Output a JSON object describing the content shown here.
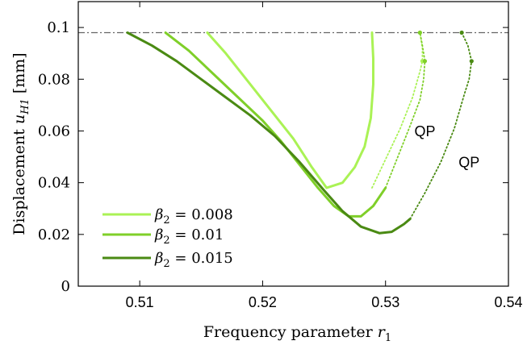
{
  "chart_data": {
    "type": "line",
    "xlabel": "Frequency parameter r",
    "xlabel_sub": "1",
    "ylabel": "Displacement u",
    "ylabel_sub": "H1",
    "ylabel_unit": "[mm]",
    "xlim": [
      0.505,
      0.54
    ],
    "ylim": [
      0,
      0.11
    ],
    "x_ticks": [
      0.51,
      0.52,
      0.53,
      0.54
    ],
    "x_tick_labels": [
      "0.51",
      "0.52",
      "0.53",
      "0.54"
    ],
    "y_ticks": [
      0,
      0.02,
      0.04,
      0.06,
      0.08,
      0.1
    ],
    "y_tick_labels": [
      "0",
      "0.02",
      "0.04",
      "0.06",
      "0.08",
      "0.1"
    ],
    "grid": false,
    "legend_placement": "bottom-left",
    "reference_line": {
      "y": 0.098,
      "style": "dash-dot",
      "color": "#666666"
    },
    "annotations": [
      {
        "text": "QP",
        "x": 0.5332,
        "y": 0.058
      },
      {
        "text": "QP",
        "x": 0.5368,
        "y": 0.046
      }
    ],
    "series": [
      {
        "name": "β2 = 0.008",
        "legend_symbol": "β",
        "legend_sub": "2",
        "legend_value": "= 0.008",
        "color": "#aaf255",
        "solid": [
          [
            0.5155,
            0.098
          ],
          [
            0.517,
            0.09
          ],
          [
            0.519,
            0.078
          ],
          [
            0.521,
            0.066
          ],
          [
            0.5225,
            0.057
          ],
          [
            0.524,
            0.046
          ],
          [
            0.5252,
            0.038
          ],
          [
            0.5265,
            0.04
          ],
          [
            0.5275,
            0.046
          ],
          [
            0.5283,
            0.054
          ],
          [
            0.5288,
            0.065
          ],
          [
            0.529,
            0.078
          ],
          [
            0.529,
            0.088
          ],
          [
            0.5289,
            0.098
          ]
        ],
        "qp": [
          [
            0.5289,
            0.038
          ],
          [
            0.53,
            0.049
          ],
          [
            0.5312,
            0.061
          ],
          [
            0.5322,
            0.073
          ],
          [
            0.5328,
            0.083
          ],
          [
            0.533,
            0.087
          ],
          [
            0.533,
            0.092
          ],
          [
            0.5328,
            0.098
          ]
        ],
        "markers": [
          [
            0.533,
            0.087
          ],
          [
            0.5328,
            0.098
          ]
        ]
      },
      {
        "name": "β2 = 0.01",
        "legend_symbol": "β",
        "legend_sub": "2",
        "legend_value": "= 0.01",
        "color": "#7fcf29",
        "solid": [
          [
            0.5121,
            0.098
          ],
          [
            0.514,
            0.091
          ],
          [
            0.516,
            0.082
          ],
          [
            0.518,
            0.073
          ],
          [
            0.52,
            0.064
          ],
          [
            0.5215,
            0.056
          ],
          [
            0.523,
            0.047
          ],
          [
            0.5245,
            0.038
          ],
          [
            0.5258,
            0.031
          ],
          [
            0.527,
            0.027
          ],
          [
            0.528,
            0.027
          ],
          [
            0.529,
            0.031
          ],
          [
            0.53,
            0.038
          ]
        ],
        "qp": [
          [
            0.53,
            0.038
          ],
          [
            0.531,
            0.05
          ],
          [
            0.532,
            0.062
          ],
          [
            0.5328,
            0.072
          ],
          [
            0.5331,
            0.08
          ],
          [
            0.5332,
            0.087
          ],
          [
            0.533,
            0.093
          ],
          [
            0.5328,
            0.098
          ]
        ],
        "markers": [
          [
            0.5332,
            0.087
          ],
          [
            0.5328,
            0.098
          ]
        ]
      },
      {
        "name": "β2 = 0.015",
        "legend_symbol": "β",
        "legend_sub": "2",
        "legend_value": "= 0.015",
        "color": "#4a8a13",
        "solid": [
          [
            0.509,
            0.098
          ],
          [
            0.511,
            0.093
          ],
          [
            0.513,
            0.087
          ],
          [
            0.515,
            0.08
          ],
          [
            0.517,
            0.073
          ],
          [
            0.519,
            0.066
          ],
          [
            0.521,
            0.058
          ],
          [
            0.523,
            0.048
          ],
          [
            0.525,
            0.037
          ],
          [
            0.5265,
            0.029
          ],
          [
            0.528,
            0.023
          ],
          [
            0.5295,
            0.0205
          ],
          [
            0.5305,
            0.021
          ],
          [
            0.5315,
            0.024
          ],
          [
            0.532,
            0.026
          ]
        ],
        "qp": [
          [
            0.532,
            0.026
          ],
          [
            0.5332,
            0.036
          ],
          [
            0.5345,
            0.048
          ],
          [
            0.5356,
            0.061
          ],
          [
            0.5364,
            0.074
          ],
          [
            0.5368,
            0.08
          ],
          [
            0.537,
            0.087
          ],
          [
            0.5367,
            0.093
          ],
          [
            0.5362,
            0.098
          ]
        ],
        "markers": [
          [
            0.537,
            0.087
          ],
          [
            0.5362,
            0.098
          ]
        ]
      }
    ]
  }
}
